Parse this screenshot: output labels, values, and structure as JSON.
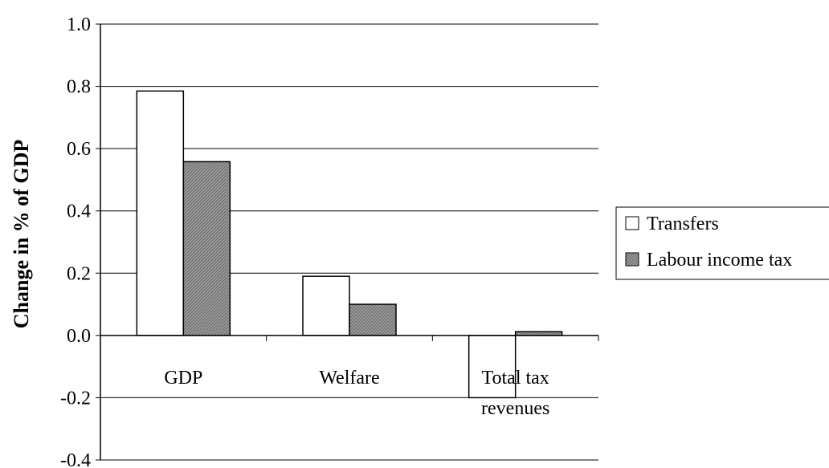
{
  "chart_data": {
    "type": "bar",
    "categories": [
      [
        "GDP"
      ],
      [
        "Welfare"
      ],
      [
        "Total tax",
        "revenues"
      ]
    ],
    "series": [
      {
        "name": "Transfers",
        "values": [
          0.785,
          0.19,
          -0.2
        ],
        "color": "#ffffff"
      },
      {
        "name": "Labour income tax",
        "values": [
          0.558,
          0.1,
          0.012
        ],
        "color": "#a6a6a6"
      }
    ],
    "title": "",
    "xlabel": "",
    "ylabel": "Change in % of GDP",
    "ylim": [
      -0.4,
      1.0
    ],
    "yticks": [
      "1.0",
      "0.8",
      "0.6",
      "0.4",
      "0.2",
      "0.0",
      "-0.2",
      "-0.4"
    ],
    "grid": true,
    "legend": "right"
  }
}
